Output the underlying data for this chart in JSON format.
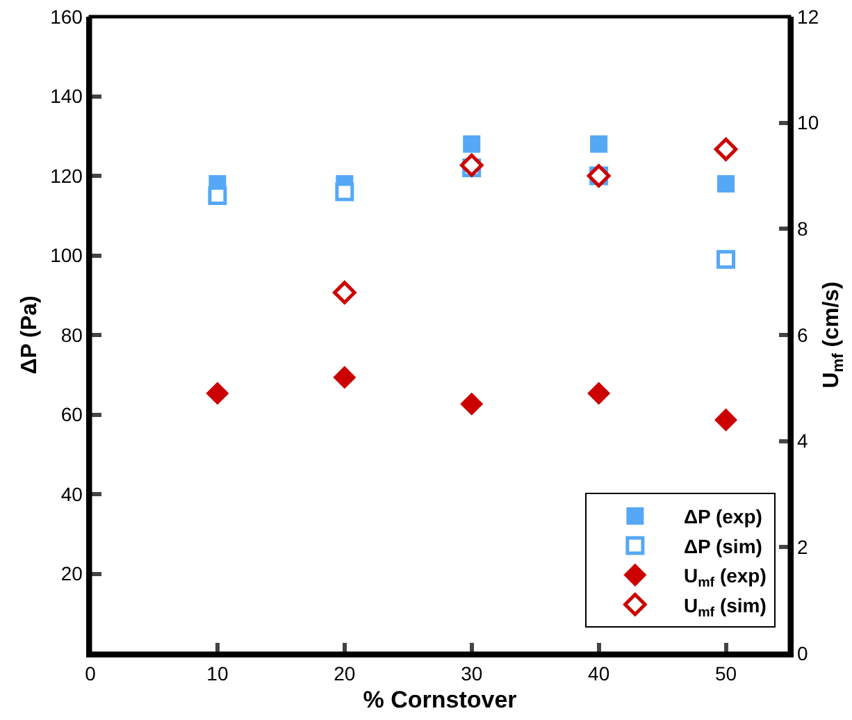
{
  "chart_data": {
    "type": "scatter",
    "xlabel": "% Cornstover",
    "ylabel": "ΔP (Pa)",
    "y2label": "U$_{mf}$ (cm/s)",
    "x": [
      10,
      20,
      30,
      40,
      50
    ],
    "series": [
      {
        "name": "ΔP (exp)",
        "color": "#55a8f5",
        "marker": "square",
        "values": [
          118,
          118,
          128,
          128,
          118
        ]
      },
      {
        "name": "ΔP (sim)",
        "color": "#55a8f5",
        "marker": "square-open",
        "values": [
          115,
          116,
          122,
          120,
          99
        ]
      },
      {
        "name": "U$_{mf}$ (exp)",
        "color": "#cc0000",
        "marker": "diamond",
        "axis": "y2",
        "values": [
          4.9,
          5.2,
          4.7,
          4.9,
          4.4
        ]
      },
      {
        "name": "U$_{mf}$ (sim)",
        "color": "#cc0000",
        "marker": "diamond-open",
        "axis": "y2",
        "values": [
          null,
          6.8,
          9.2,
          9.0,
          9.5
        ]
      }
    ],
    "xlim": [
      0,
      55
    ],
    "xticks": [
      0,
      10,
      20,
      30,
      40,
      50
    ],
    "ylim": [
      0,
      160
    ],
    "yticks": [
      {
        "value": 0,
        "label": null
      },
      20,
      40,
      60,
      80,
      100,
      120,
      140,
      160
    ],
    "y2lim": [
      0,
      12
    ],
    "y2ticks": [
      0,
      2,
      4,
      6,
      8,
      10,
      12
    ],
    "grid": false,
    "legend": "bottom right"
  }
}
